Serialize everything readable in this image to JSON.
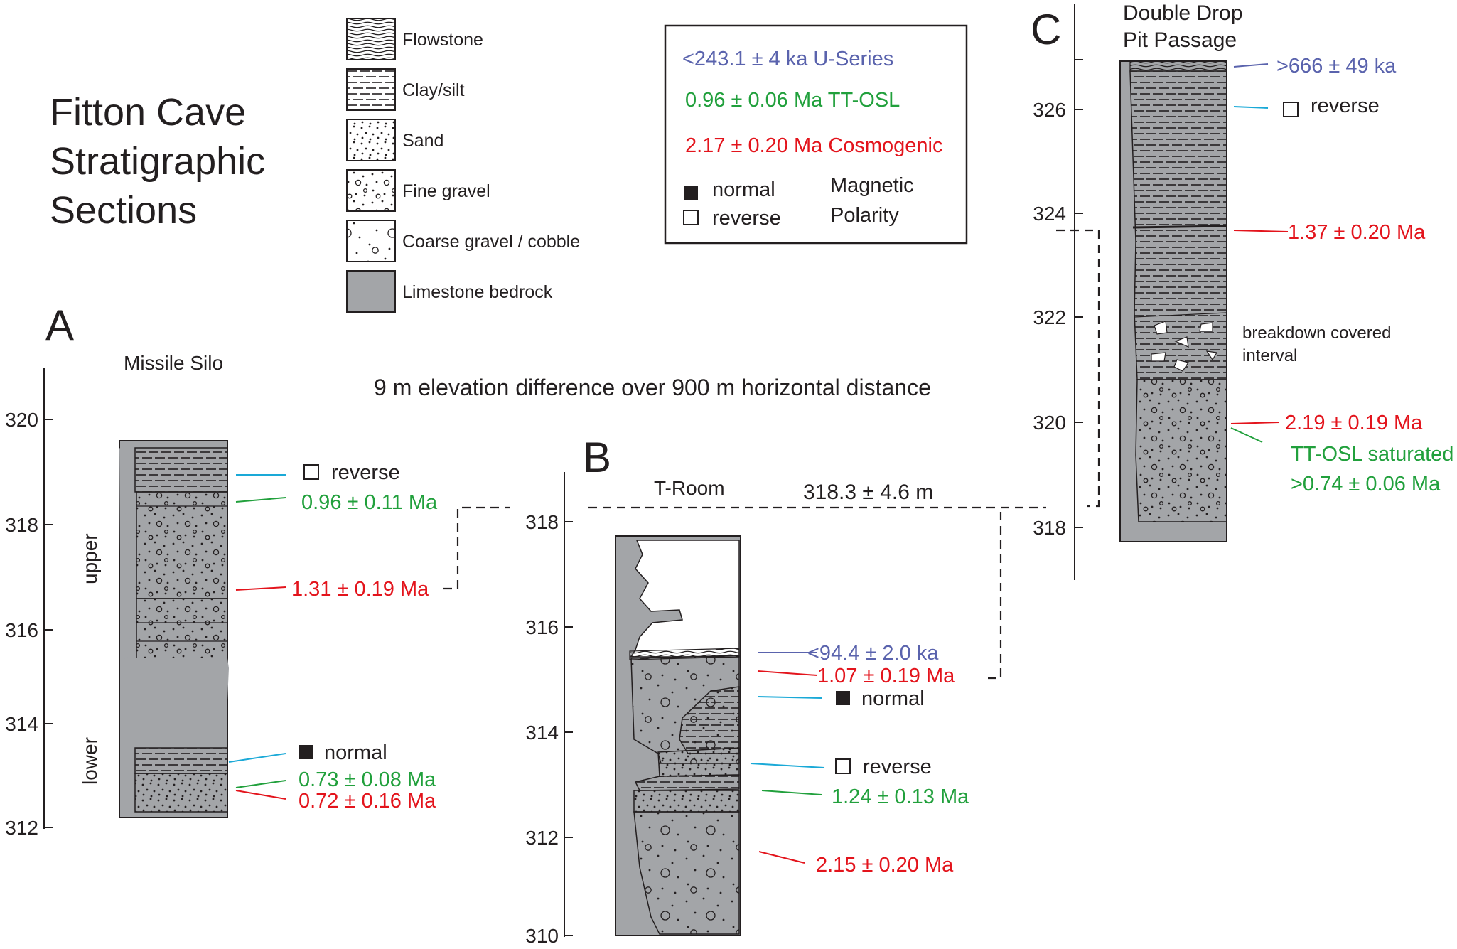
{
  "title": [
    "Fitton Cave",
    "Stratigraphic",
    "Sections"
  ],
  "colors": {
    "useries": "#5a63ad",
    "ttosl": "#21a03c",
    "cosmogenic": "#e3141c",
    "polarity": "#1aa9d7",
    "bedrock": "#a3a5a8",
    "ink": "#231f20"
  },
  "legend": {
    "items": [
      {
        "label": "Flowstone",
        "pattern": "flowstone"
      },
      {
        "label": "Clay/silt",
        "pattern": "clay"
      },
      {
        "label": "Sand",
        "pattern": "sand"
      },
      {
        "label": "Fine gravel",
        "pattern": "finegravel"
      },
      {
        "label": "Coarse gravel / cobble",
        "pattern": "coarse"
      },
      {
        "label": "Limestone bedrock",
        "pattern": "bedrock"
      }
    ]
  },
  "key": {
    "useries": "<243.1 ± 4 ka  U-Series",
    "ttosl": "0.96 ± 0.06 Ma  TT-OSL",
    "cosmogenic": "2.17 ± 0.20 Ma Cosmogenic",
    "normal": "normal",
    "reverse": "reverse",
    "magnetic": "Magnetic",
    "polarity": "Polarity"
  },
  "elevation_note": "9 m elevation difference over 900 m horizontal distance",
  "correlation_label": "318.3 ± 4.6 m",
  "sections": {
    "A": {
      "letter": "A",
      "name": "Missile Silo",
      "ticks": [
        "320",
        "318",
        "316",
        "314",
        "312"
      ],
      "upper": "upper",
      "lower": "lower",
      "labels": {
        "reverse": "reverse",
        "ttosl1": "0.96 ± 0.11 Ma",
        "cosmo1": "1.31  ± 0.19 Ma",
        "normal": "normal",
        "ttosl2": "0.73 ± 0.08 Ma",
        "cosmo2": "0.72 ± 0.16 Ma"
      }
    },
    "B": {
      "letter": "B",
      "name": "T-Room",
      "ticks": [
        "318",
        "316",
        "314",
        "312",
        "310"
      ],
      "labels": {
        "useries": "<94.4 ± 2.0 ka",
        "cosmo1": "1.07 ± 0.19 Ma",
        "normal": "normal",
        "reverse": "reverse",
        "ttosl": "1.24 ± 0.13 Ma",
        "cosmo2": "2.15 ± 0.20 Ma"
      }
    },
    "C": {
      "letter": "C",
      "name1": "Double Drop",
      "name2": "Pit Passage",
      "ticks": [
        "326",
        "324",
        "322",
        "320",
        "318"
      ],
      "labels": {
        "useries": ">666 ± 49 ka",
        "reverse": "reverse",
        "cosmo1": "1.37 ± 0.20 Ma",
        "breakdown1": "breakdown covered",
        "breakdown2": "interval",
        "cosmo2": "2.19 ± 0.19 Ma",
        "ttosl1": "TT-OSL saturated",
        "ttosl2": ">0.74 ± 0.06 Ma"
      }
    }
  }
}
